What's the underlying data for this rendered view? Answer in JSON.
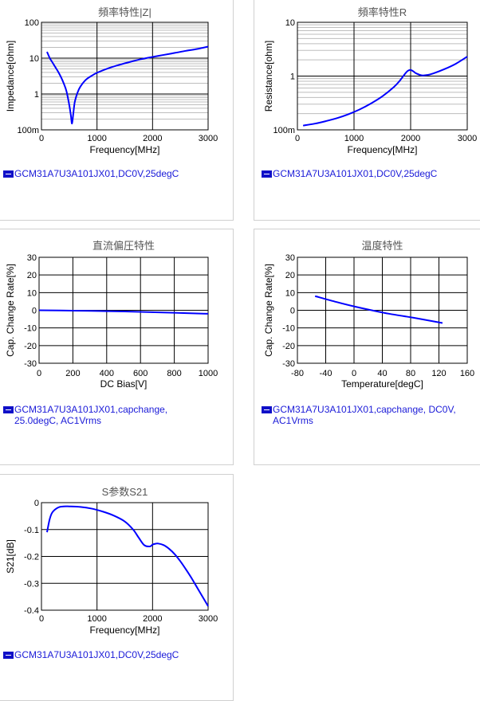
{
  "colors": {
    "series": "#0000ff",
    "legend_text": "#1a1ad8",
    "legend_swatch": "#1010c8",
    "grid_major": "#000000",
    "grid_minor": "#bdbdbd",
    "title": "#555555"
  },
  "chart_data": [
    {
      "type": "line",
      "title": "頻率特性|Z|",
      "xlabel": "Frequency[MHz]",
      "ylabel": "Impedance[ohm]",
      "xlim": [
        0,
        3000
      ],
      "ylim": [
        0.1,
        100
      ],
      "yscale": "log",
      "xticks": [
        0,
        1000,
        2000,
        3000
      ],
      "xtick_labels": [
        "0",
        "1000",
        "2000",
        "3000"
      ],
      "yticks": [
        0.1,
        1,
        10,
        100
      ],
      "ytick_labels": [
        "100m",
        "1",
        "10",
        "100"
      ],
      "grid": true,
      "legend": "GCM31A7U3A101JX01,DC0V,25degC",
      "series": [
        {
          "x": [
            100,
            150,
            200,
            250,
            300,
            350,
            400,
            450,
            500,
            530,
            550,
            575,
            600,
            650,
            700,
            800,
            900,
            1000,
            1200,
            1400,
            1600,
            1800,
            2000,
            2200,
            2400,
            2600,
            2800,
            3000
          ],
          "y": [
            15,
            10,
            7.5,
            5.6,
            4.2,
            3,
            2,
            1.2,
            0.5,
            0.25,
            0.15,
            0.3,
            0.6,
            1.1,
            1.6,
            2.5,
            3.2,
            3.9,
            5.2,
            6.5,
            7.9,
            9.4,
            10.8,
            12.3,
            14,
            16,
            18,
            21
          ]
        }
      ]
    },
    {
      "type": "line",
      "title": "頻率特性R",
      "xlabel": "Frequency[MHz]",
      "ylabel": "Resistance[ohm]",
      "xlim": [
        0,
        3000
      ],
      "ylim": [
        0.1,
        10
      ],
      "yscale": "log",
      "xticks": [
        0,
        1000,
        2000,
        3000
      ],
      "xtick_labels": [
        "0",
        "1000",
        "2000",
        "3000"
      ],
      "yticks": [
        0.1,
        1,
        10
      ],
      "ytick_labels": [
        "100m",
        "1",
        "10"
      ],
      "grid": true,
      "legend": "GCM31A7U3A101JX01,DC0V,25degC",
      "series": [
        {
          "x": [
            100,
            300,
            500,
            700,
            900,
            1100,
            1300,
            1500,
            1700,
            1800,
            1900,
            1950,
            2000,
            2050,
            2100,
            2200,
            2300,
            2400,
            2600,
            2800,
            3000
          ],
          "y": [
            0.12,
            0.13,
            0.145,
            0.165,
            0.195,
            0.24,
            0.31,
            0.42,
            0.62,
            0.8,
            1.1,
            1.25,
            1.3,
            1.22,
            1.12,
            1.03,
            1.05,
            1.12,
            1.35,
            1.7,
            2.3
          ]
        }
      ]
    },
    {
      "type": "line",
      "title": "直流偏圧特性",
      "xlabel": "DC Bias[V]",
      "ylabel": "Cap. Change Rate[%]",
      "xlim": [
        0,
        1000
      ],
      "ylim": [
        -30,
        30
      ],
      "xticks": [
        0,
        200,
        400,
        600,
        800,
        1000
      ],
      "xtick_labels": [
        "0",
        "200",
        "400",
        "600",
        "800",
        "1000"
      ],
      "yticks": [
        -30,
        -20,
        -10,
        0,
        10,
        20,
        30
      ],
      "ytick_labels": [
        "-30",
        "-20",
        "-10",
        "0",
        "10",
        "20",
        "30"
      ],
      "grid": true,
      "legend": "GCM31A7U3A101JX01,capchange,\n25.0degC, AC1Vrms",
      "series": [
        {
          "x": [
            0,
            200,
            400,
            600,
            800,
            1000
          ],
          "y": [
            0,
            -0.2,
            -0.5,
            -0.9,
            -1.4,
            -2
          ]
        }
      ]
    },
    {
      "type": "line",
      "title": "温度特性",
      "xlabel": "Temperature[degC]",
      "ylabel": "Cap. Change Rate[%]",
      "xlim": [
        -80,
        160
      ],
      "ylim": [
        -30,
        30
      ],
      "xticks": [
        -80,
        -40,
        0,
        40,
        80,
        120,
        160
      ],
      "xtick_labels": [
        "-80",
        "-40",
        "0",
        "40",
        "80",
        "120",
        "160"
      ],
      "yticks": [
        -30,
        -20,
        -10,
        0,
        10,
        20,
        30
      ],
      "ytick_labels": [
        "-30",
        "-20",
        "-10",
        "0",
        "10",
        "20",
        "30"
      ],
      "grid": true,
      "legend": "GCM31A7U3A101JX01,capchange, DC0V,\nAC1Vrms",
      "series": [
        {
          "x": [
            -55,
            -25,
            0,
            25,
            50,
            85,
            125
          ],
          "y": [
            8,
            4.7,
            2.2,
            0,
            -2,
            -4.3,
            -7.2
          ]
        }
      ]
    },
    {
      "type": "line",
      "title": "S参数S21",
      "xlabel": "Frequency[MHz]",
      "ylabel": "S21[dB]",
      "xlim": [
        0,
        3000
      ],
      "ylim": [
        -0.4,
        0
      ],
      "xticks": [
        0,
        1000,
        2000,
        3000
      ],
      "xtick_labels": [
        "0",
        "1000",
        "2000",
        "3000"
      ],
      "yticks": [
        -0.4,
        -0.3,
        -0.2,
        -0.1,
        0
      ],
      "ytick_labels": [
        "-0.4",
        "-0.3",
        "-0.2",
        "-0.1",
        "0"
      ],
      "grid": true,
      "legend": "GCM31A7U3A101JX01,DC0V,25degC",
      "series": [
        {
          "x": [
            100,
            150,
            200,
            300,
            400,
            500,
            700,
            900,
            1100,
            1300,
            1500,
            1650,
            1750,
            1850,
            1950,
            2000,
            2050,
            2100,
            2200,
            2300,
            2400,
            2500,
            2600,
            2700,
            2800,
            2900,
            3000
          ],
          "y": [
            -0.11,
            -0.06,
            -0.035,
            -0.018,
            -0.014,
            -0.014,
            -0.016,
            -0.022,
            -0.033,
            -0.048,
            -0.07,
            -0.1,
            -0.13,
            -0.158,
            -0.163,
            -0.156,
            -0.153,
            -0.152,
            -0.158,
            -0.172,
            -0.192,
            -0.218,
            -0.248,
            -0.28,
            -0.315,
            -0.35,
            -0.385
          ]
        }
      ]
    }
  ]
}
